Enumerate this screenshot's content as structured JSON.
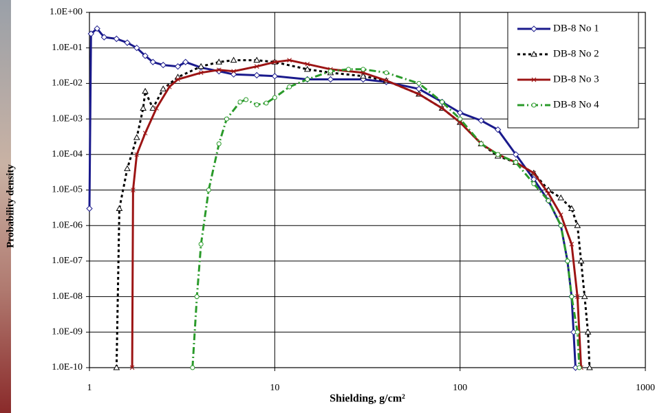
{
  "chart_data": {
    "type": "line",
    "xlabel": "Shielding, g/cm²",
    "ylabel": "Probability density",
    "xscale": "log",
    "yscale": "log",
    "grid": true,
    "legend": "upper right",
    "xlim": [
      1,
      1000
    ],
    "xticks": [
      1,
      10,
      100,
      1000
    ],
    "ylim": [
      1e-10,
      1
    ],
    "yticks": [
      {
        "value": 1,
        "label": "1.0E+00"
      },
      {
        "value": 0.1,
        "label": "1.0E-01"
      },
      {
        "value": 0.01,
        "label": "1.0E-02"
      },
      {
        "value": 0.001,
        "label": "1.0E-03"
      },
      {
        "value": 0.0001,
        "label": "1.0E-04"
      },
      {
        "value": 1e-05,
        "label": "1.0E-05"
      },
      {
        "value": 1e-06,
        "label": "1.0E-06"
      },
      {
        "value": 1e-07,
        "label": "1.0E-07"
      },
      {
        "value": 1e-08,
        "label": "1.0E-08"
      },
      {
        "value": 1e-09,
        "label": "1.0E-09"
      },
      {
        "value": 1e-10,
        "label": "1.0E-10"
      }
    ],
    "series": [
      {
        "name": "DB-8 No 1",
        "color": "#1a1a8c",
        "linestyle": "solid",
        "marker": "diamond",
        "x": [
          1.0,
          1.02,
          1.1,
          1.2,
          1.4,
          1.6,
          1.8,
          2.0,
          2.2,
          2.5,
          3,
          3.3,
          4,
          5,
          6,
          8,
          10,
          15,
          20,
          30,
          40,
          60,
          80,
          100,
          130,
          160,
          200,
          250,
          300,
          350,
          380,
          400,
          410,
          420
        ],
        "values": [
          3e-06,
          0.25,
          0.35,
          0.2,
          0.18,
          0.14,
          0.1,
          0.06,
          0.04,
          0.033,
          0.03,
          0.04,
          0.028,
          0.022,
          0.018,
          0.017,
          0.016,
          0.013,
          0.013,
          0.013,
          0.011,
          0.007,
          0.003,
          0.0015,
          0.0009,
          0.0005,
          0.0001,
          2e-05,
          5e-06,
          1e-06,
          1e-07,
          1e-08,
          1e-09,
          1e-10
        ]
      },
      {
        "name": "DB-8 No 2",
        "color": "#000000",
        "linestyle": "dotted",
        "marker": "triangle",
        "x": [
          1.4,
          1.45,
          1.6,
          1.8,
          1.95,
          2.0,
          2.2,
          2.5,
          3,
          4,
          5,
          6,
          8,
          10,
          15,
          20,
          30,
          40,
          60,
          80,
          100,
          130,
          160,
          200,
          250,
          300,
          350,
          400,
          430,
          450,
          470,
          490,
          500
        ],
        "values": [
          1e-10,
          3e-06,
          4e-05,
          0.0003,
          0.002,
          0.006,
          0.002,
          0.007,
          0.015,
          0.03,
          0.04,
          0.045,
          0.045,
          0.04,
          0.025,
          0.02,
          0.016,
          0.012,
          0.005,
          0.002,
          0.0008,
          0.0002,
          9e-05,
          6e-05,
          3e-05,
          1e-05,
          6e-06,
          3e-06,
          1e-06,
          1e-07,
          1e-08,
          1e-09,
          1e-10
        ]
      },
      {
        "name": "DB-8 No 3",
        "color": "#9c1414",
        "linestyle": "solid",
        "marker": "x",
        "x": [
          1.7,
          1.72,
          1.8,
          2.0,
          2.3,
          2.7,
          3,
          4,
          5,
          6,
          8,
          10,
          12,
          15,
          20,
          30,
          40,
          60,
          80,
          100,
          130,
          160,
          200,
          250,
          300,
          350,
          400,
          430,
          450
        ],
        "values": [
          1e-10,
          1e-05,
          0.0001,
          0.0004,
          0.002,
          0.008,
          0.013,
          0.02,
          0.024,
          0.022,
          0.03,
          0.04,
          0.045,
          0.035,
          0.025,
          0.02,
          0.012,
          0.005,
          0.002,
          0.0008,
          0.0002,
          0.0001,
          6e-05,
          3e-05,
          8e-06,
          2e-06,
          3e-07,
          1e-08,
          1e-10
        ]
      },
      {
        "name": "DB-8 No 4",
        "color": "#2a9a2a",
        "linestyle": "dashdot",
        "marker": "circle",
        "x": [
          3.6,
          3.8,
          4,
          4.4,
          5,
          5.5,
          6.5,
          7,
          8,
          9,
          10,
          12,
          15,
          20,
          25,
          30,
          40,
          60,
          80,
          100,
          130,
          160,
          200,
          250,
          300,
          350,
          380,
          400,
          430,
          440
        ],
        "values": [
          1e-10,
          1e-08,
          3e-07,
          1e-05,
          0.0002,
          0.001,
          0.003,
          0.0035,
          0.0025,
          0.0028,
          0.004,
          0.008,
          0.013,
          0.022,
          0.025,
          0.025,
          0.02,
          0.01,
          0.003,
          0.001,
          0.0002,
          0.0001,
          6e-05,
          1.5e-05,
          5e-06,
          1e-06,
          1e-07,
          1e-08,
          1e-09,
          1e-10
        ]
      }
    ]
  }
}
